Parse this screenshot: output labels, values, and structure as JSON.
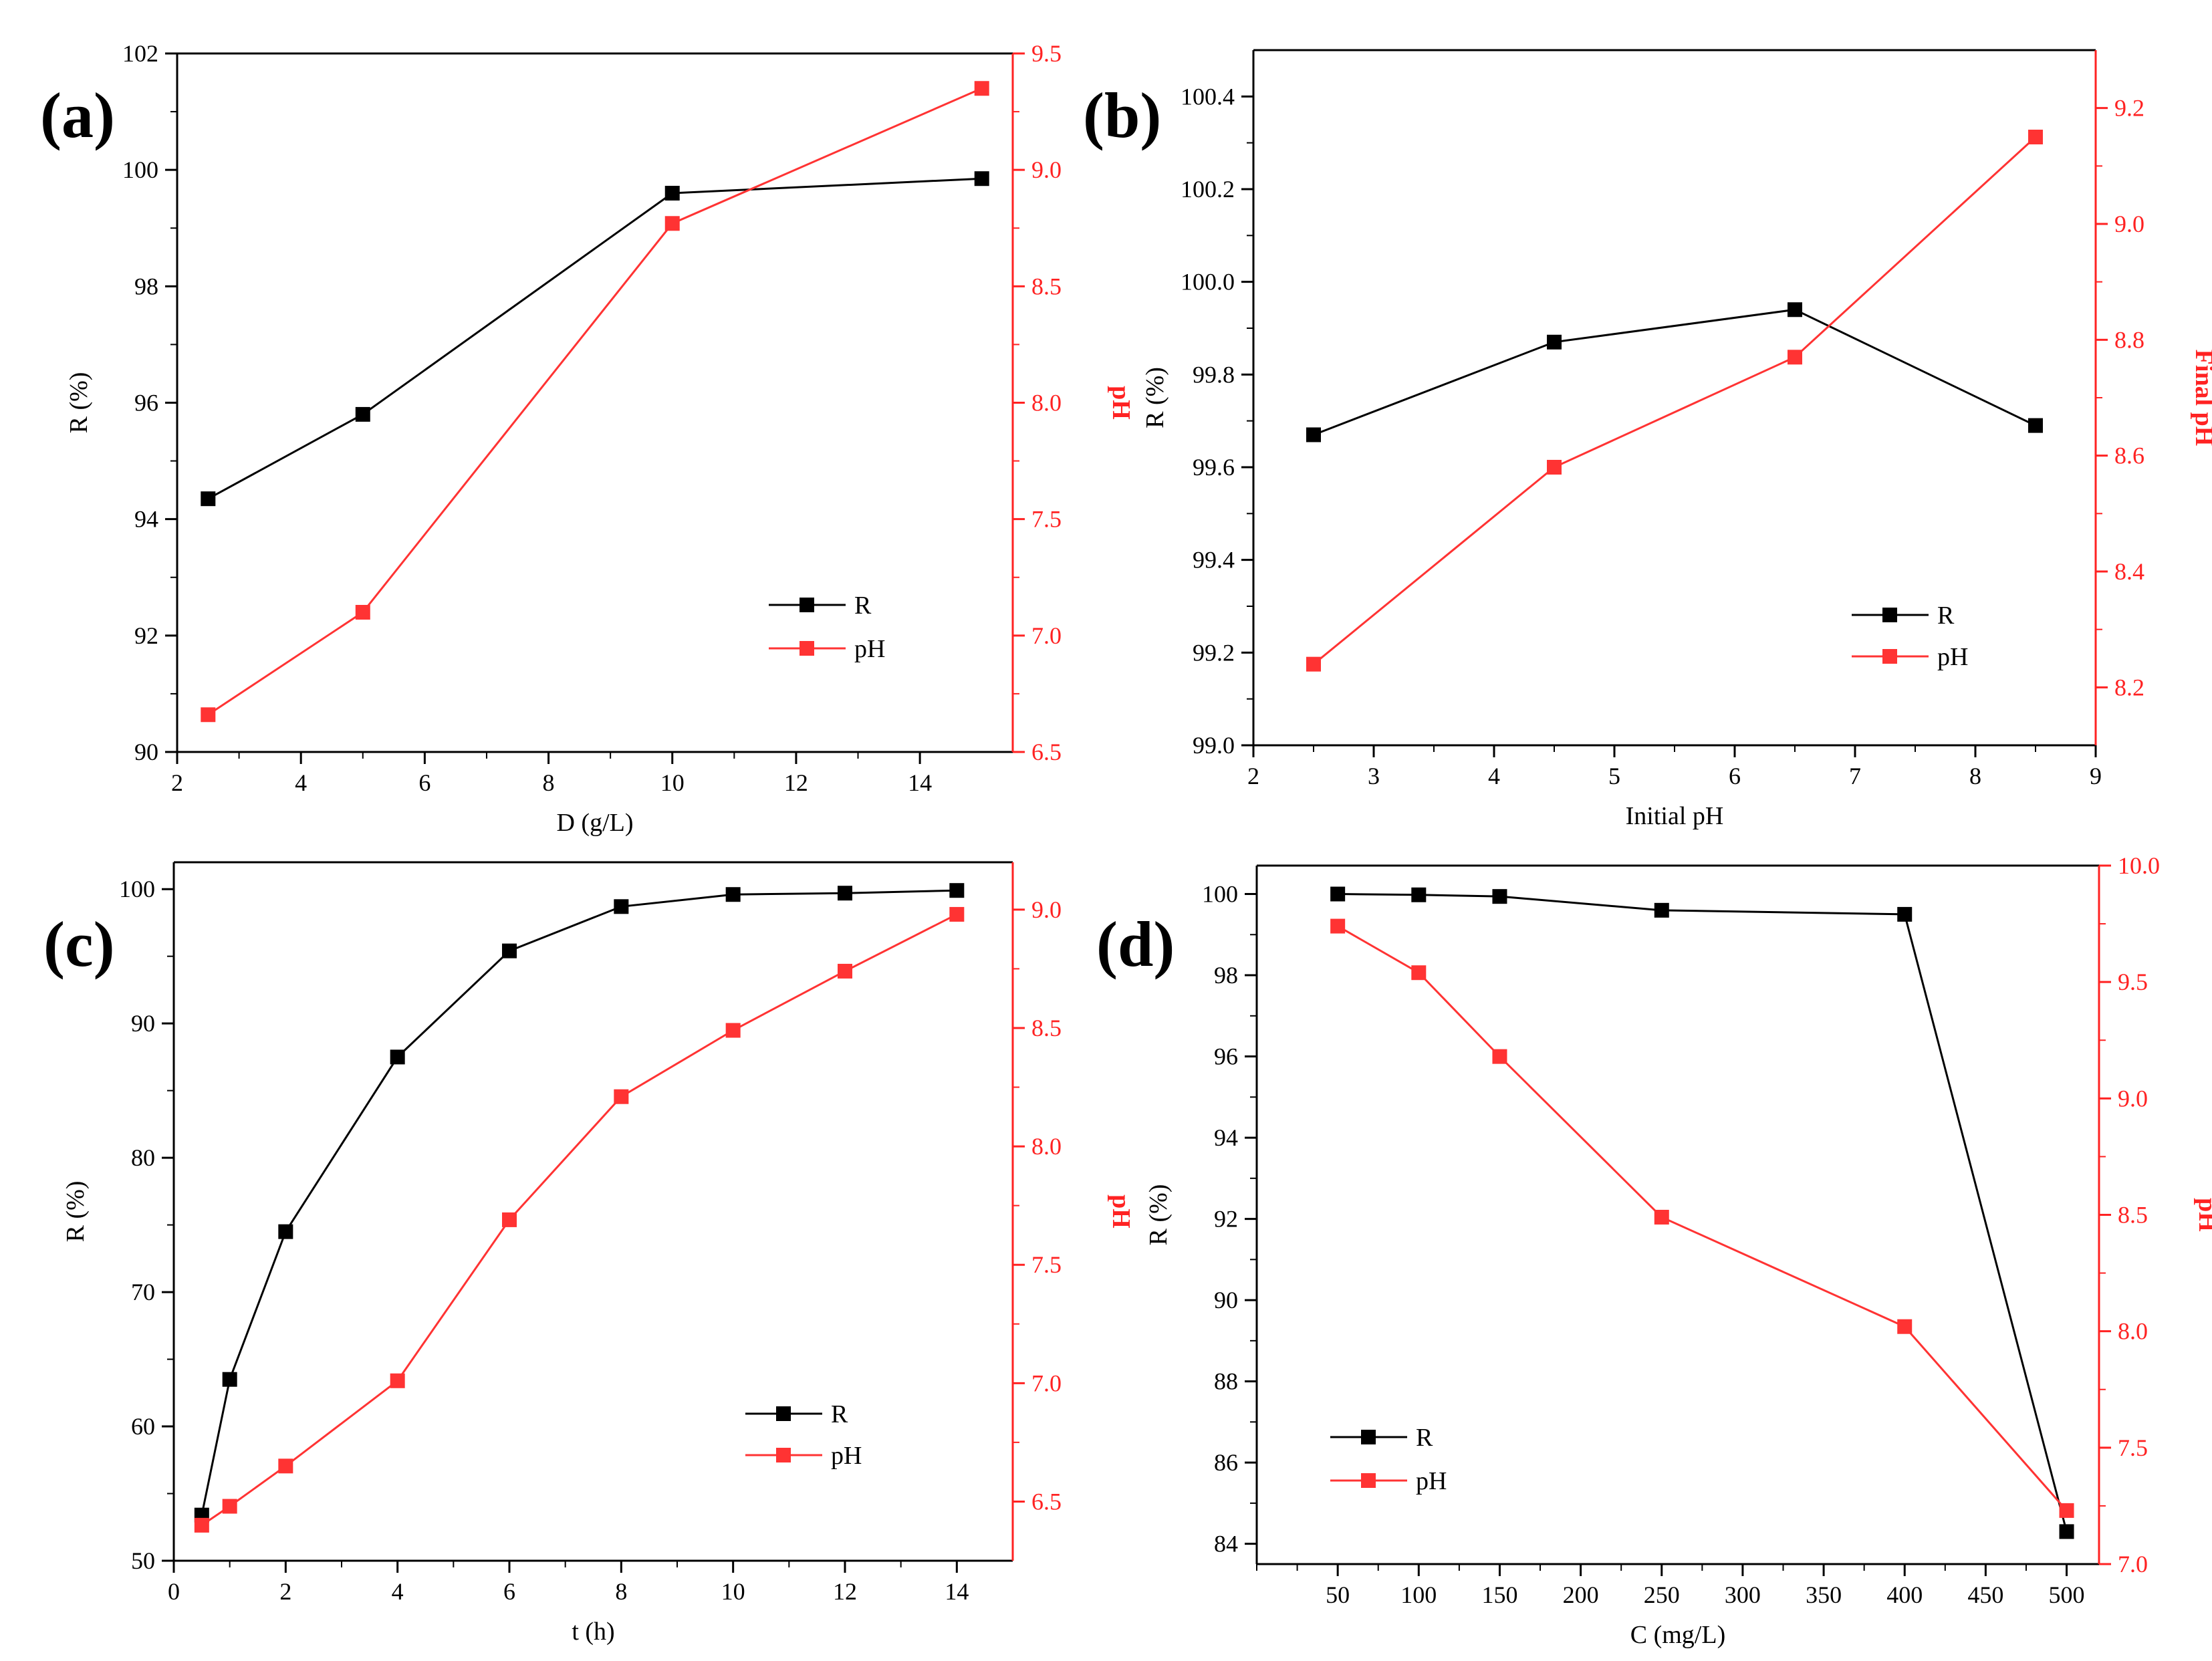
{
  "colors": {
    "R": "#000000",
    "pH": "#ff3333",
    "axis_right": "#ff2222"
  },
  "chart_data": [
    {
      "id": "a",
      "type": "line",
      "panel_label": "(a)",
      "xlabel": "D (g/L)",
      "ylabel": "R (%)",
      "y2label": "pH",
      "y2label_flipped": true,
      "xlim": [
        2,
        15.5
      ],
      "xticks": [
        2,
        4,
        6,
        8,
        10,
        12,
        14
      ],
      "ylim": [
        90,
        102
      ],
      "yticks": [
        90,
        92,
        94,
        96,
        98,
        100,
        102
      ],
      "y2lim": [
        6.5,
        9.5
      ],
      "y2ticks": [
        6.5,
        7.0,
        7.5,
        8.0,
        8.5,
        9.0,
        9.5
      ],
      "ytick_decimals": 0,
      "y2tick_decimals": 1,
      "legend": {
        "position": "bottom-right",
        "labels": [
          "R",
          "pH"
        ]
      },
      "series": [
        {
          "name": "R",
          "axis": "left",
          "x": [
            2.5,
            5,
            10,
            15
          ],
          "values": [
            94.35,
            95.8,
            99.6,
            99.85
          ]
        },
        {
          "name": "pH",
          "axis": "right",
          "x": [
            2.5,
            5,
            10,
            15
          ],
          "values": [
            6.66,
            7.1,
            8.77,
            9.35
          ]
        }
      ]
    },
    {
      "id": "b",
      "type": "line",
      "panel_label": "(b)",
      "xlabel": "Initial pH",
      "ylabel": "R (%)",
      "y2label": "Final pH",
      "y2label_flipped": false,
      "xlim": [
        2,
        9
      ],
      "xticks": [
        2,
        3,
        4,
        5,
        6,
        7,
        8,
        9
      ],
      "ylim": [
        99.0,
        100.5
      ],
      "yticks": [
        99.0,
        99.2,
        99.4,
        99.6,
        99.8,
        100.0,
        100.2,
        100.4
      ],
      "y2lim": [
        8.1,
        9.3
      ],
      "y2ticks": [
        8.2,
        8.4,
        8.6,
        8.8,
        9.0,
        9.2
      ],
      "ytick_decimals": 1,
      "y2tick_decimals": 1,
      "legend": {
        "position": "bottom-right",
        "labels": [
          "R",
          "pH"
        ]
      },
      "series": [
        {
          "name": "R",
          "axis": "left",
          "x": [
            2.5,
            4.5,
            6.5,
            8.5
          ],
          "values": [
            99.67,
            99.87,
            99.94,
            99.69
          ]
        },
        {
          "name": "pH",
          "axis": "right",
          "x": [
            2.5,
            4.5,
            6.5,
            8.5
          ],
          "values": [
            8.24,
            8.58,
            8.77,
            9.15
          ]
        }
      ]
    },
    {
      "id": "c",
      "type": "line",
      "panel_label": "(c)",
      "xlabel": "t (h)",
      "ylabel": "R (%)",
      "y2label": "pH",
      "y2label_flipped": true,
      "xlim": [
        0,
        15
      ],
      "xticks": [
        0,
        2,
        4,
        6,
        8,
        10,
        12,
        14
      ],
      "ylim": [
        50,
        102
      ],
      "yticks": [
        50,
        60,
        70,
        80,
        90,
        100
      ],
      "y2lim": [
        6.25,
        9.2
      ],
      "y2ticks": [
        6.5,
        7.0,
        7.5,
        8.0,
        8.5,
        9.0
      ],
      "ytick_decimals": 0,
      "y2tick_decimals": 1,
      "legend": {
        "position": "bottom-right",
        "labels": [
          "R",
          "pH"
        ]
      },
      "series": [
        {
          "name": "R",
          "axis": "left",
          "x": [
            0.5,
            1,
            2,
            4,
            6,
            8,
            10,
            12,
            14
          ],
          "values": [
            53.4,
            63.5,
            74.5,
            87.5,
            95.4,
            98.7,
            99.6,
            99.7,
            99.9
          ]
        },
        {
          "name": "pH",
          "axis": "right",
          "x": [
            0.5,
            1,
            2,
            4,
            6,
            8,
            10,
            12,
            14
          ],
          "values": [
            6.4,
            6.48,
            6.65,
            7.01,
            7.69,
            8.21,
            8.49,
            8.74,
            8.98
          ]
        }
      ]
    },
    {
      "id": "d",
      "type": "line",
      "panel_label": "(d)",
      "xlabel": "C (mg/L)",
      "ylabel": "R (%)",
      "y2label": "pH",
      "y2label_flipped": true,
      "xlim": [
        0,
        520
      ],
      "xticks": [
        50,
        100,
        150,
        200,
        250,
        300,
        350,
        400,
        450,
        500
      ],
      "xticks_minor": [
        0,
        25,
        75,
        125,
        175,
        225,
        275,
        325,
        375,
        425,
        475
      ],
      "ylim": [
        83.5,
        100.7
      ],
      "yticks": [
        84,
        86,
        88,
        90,
        92,
        94,
        96,
        98,
        100
      ],
      "y2lim": [
        7.0,
        10.0
      ],
      "y2ticks": [
        7.0,
        7.5,
        8.0,
        8.5,
        9.0,
        9.5,
        10.0
      ],
      "ytick_decimals": 0,
      "y2tick_decimals": 1,
      "legend": {
        "position": "bottom-left",
        "labels": [
          "R",
          "pH"
        ]
      },
      "series": [
        {
          "name": "R",
          "axis": "left",
          "x": [
            50,
            100,
            150,
            250,
            400,
            500
          ],
          "values": [
            100.0,
            99.98,
            99.94,
            99.6,
            99.5,
            84.3
          ]
        },
        {
          "name": "pH",
          "axis": "right",
          "x": [
            50,
            100,
            150,
            250,
            400,
            500
          ],
          "values": [
            9.74,
            9.54,
            9.18,
            8.49,
            8.02,
            7.23
          ]
        }
      ]
    }
  ]
}
